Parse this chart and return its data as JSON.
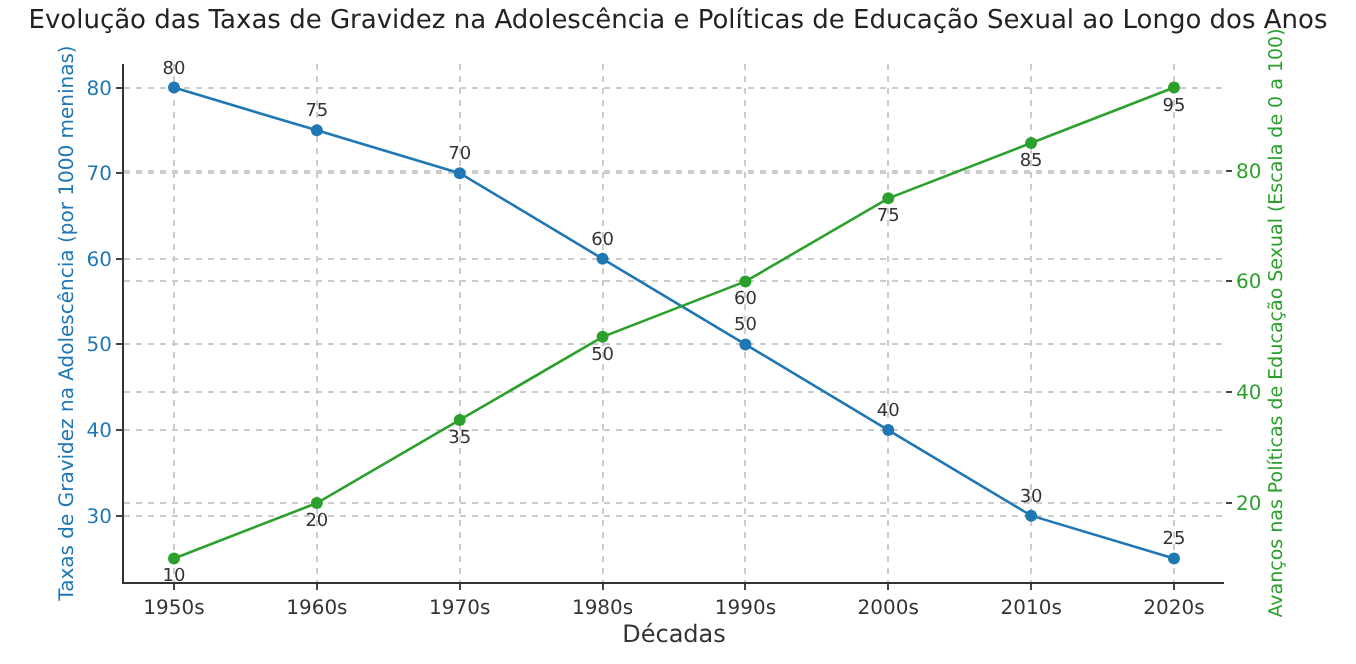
{
  "chart_data": {
    "type": "line",
    "title": "Evolução das Taxas de Gravidez na Adolescência e Políticas de Educação Sexual ao Longo dos Anos",
    "xlabel": "Décadas",
    "ylabel": "Taxas de Gravidez na Adolescência (por 1000 meninas)",
    "y2label": "Avanços nas Políticas de Educação Sexual (Escala de 0 a 100)",
    "categories": [
      "1950s",
      "1960s",
      "1970s",
      "1980s",
      "1990s",
      "2000s",
      "2010s",
      "2020s"
    ],
    "series": [
      {
        "color": "#1f77b4",
        "values": [
          80,
          75,
          70,
          60,
          50,
          40,
          30,
          25
        ]
      },
      {
        "color": "#2ca02c",
        "values": [
          10,
          20,
          35,
          50,
          60,
          75,
          85,
          95
        ],
        "axis": "y2"
      }
    ],
    "ylim": [
      22.25,
      82.75
    ],
    "yticks": [
      30,
      40,
      50,
      60,
      70,
      80
    ],
    "y2lim": [
      5.75,
      99.25
    ],
    "y2ticks": [
      20,
      40,
      60,
      80
    ],
    "grid": true,
    "marker": "circle",
    "line_style": "solid",
    "data_labels": true
  }
}
